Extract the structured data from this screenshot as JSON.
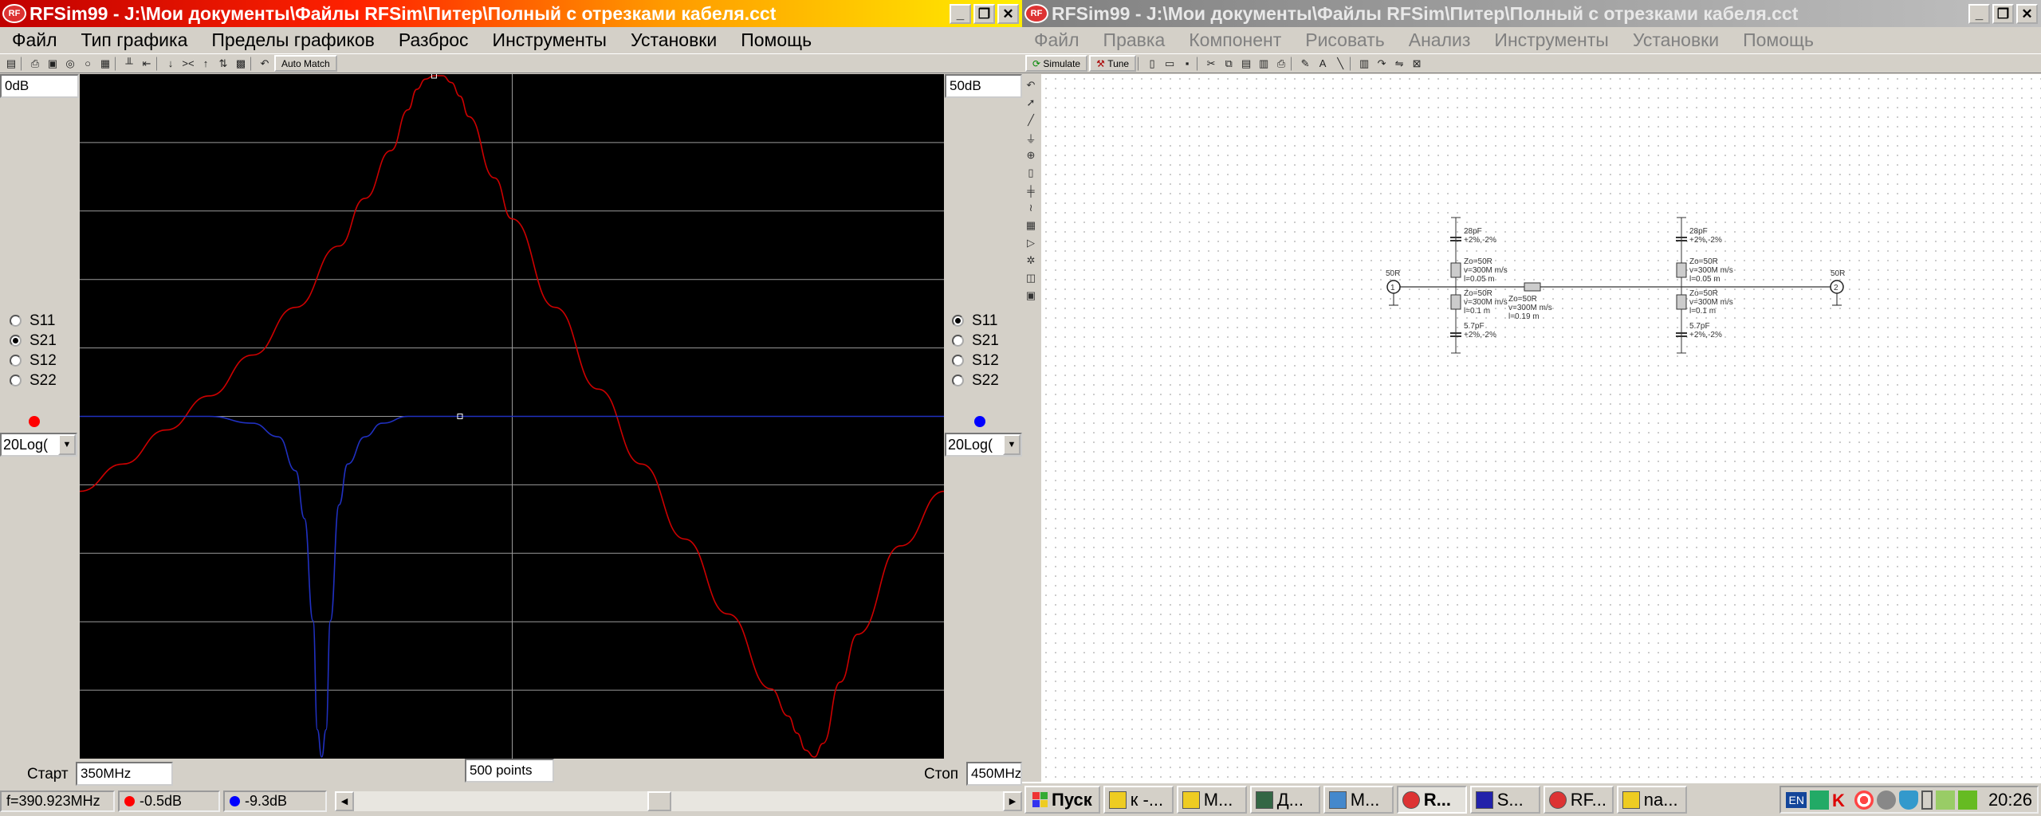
{
  "left": {
    "title": "RFSim99 - J:\\Мои документы\\Файлы RFSim\\Питер\\Полный с отрезками кабеля.cct",
    "menu": [
      "Файл",
      "Тип графика",
      "Пределы графиков",
      "Разброс",
      "Инструменты",
      "Установки",
      "Помощь"
    ],
    "toolbar": {
      "auto_match_label": "Auto Match"
    },
    "left_axis_top": "0dB",
    "right_axis_top": "50dB",
    "left_params": [
      {
        "label": "S11",
        "checked": false
      },
      {
        "label": "S21",
        "checked": true
      },
      {
        "label": "S12",
        "checked": false
      },
      {
        "label": "S22",
        "checked": false
      }
    ],
    "right_params": [
      {
        "label": "S11",
        "checked": true
      },
      {
        "label": "S21",
        "checked": false
      },
      {
        "label": "S12",
        "checked": false
      },
      {
        "label": "S22",
        "checked": false
      }
    ],
    "left_trace_color": "#ff0000",
    "right_trace_color": "#0000ff",
    "left_format": "20Log(",
    "right_format": "20Log(",
    "start_label": "Старт",
    "start_value": "350MHz",
    "stop_label": "Стоп",
    "stop_value": "450MHz",
    "points": "500 points",
    "status": {
      "freq": "f=390.923MHz",
      "red_value": "-0.5dB",
      "blue_value": "-9.3dB"
    }
  },
  "chart_data": {
    "type": "line",
    "x_range_mhz": [
      350,
      450
    ],
    "series": [
      {
        "color": "#cc0000",
        "x": [
          350,
          355,
          360,
          365,
          370,
          375,
          380,
          383,
          386,
          388,
          389,
          390,
          391,
          392,
          393,
          394,
          395,
          398,
          400,
          405,
          410,
          415,
          420,
          425,
          430,
          432,
          433,
          434,
          435,
          436,
          438,
          440,
          445,
          450
        ],
        "y_frac": [
          0.39,
          0.43,
          0.48,
          0.53,
          0.59,
          0.66,
          0.75,
          0.82,
          0.89,
          0.95,
          0.98,
          0.995,
          1.0,
          1.0,
          0.99,
          0.97,
          0.94,
          0.85,
          0.79,
          0.66,
          0.54,
          0.43,
          0.32,
          0.21,
          0.1,
          0.06,
          0.035,
          0.01,
          0.0,
          0.02,
          0.11,
          0.18,
          0.31,
          0.39
        ]
      },
      {
        "color": "#2030c0",
        "x": [
          350,
          360,
          365,
          370,
          373,
          375,
          376,
          377,
          377.5,
          378,
          378.5,
          379,
          380,
          381,
          383,
          385,
          388,
          395,
          450
        ],
        "y_frac": [
          0.5,
          0.5,
          0.5,
          0.49,
          0.47,
          0.42,
          0.35,
          0.2,
          0.04,
          0.0,
          0.04,
          0.2,
          0.37,
          0.43,
          0.47,
          0.49,
          0.5,
          0.5,
          0.5
        ]
      }
    ],
    "grid": true,
    "markers_x": [
      391,
      394
    ]
  },
  "right": {
    "title": "RFSim99 - J:\\Мои документы\\Файлы RFSim\\Питер\\Полный с отрезками кабеля.cct",
    "menu": [
      "Файл",
      "Правка",
      "Компонент",
      "Рисовать",
      "Анализ",
      "Инструменты",
      "Установки",
      "Помощь"
    ],
    "simulate_label": "Simulate",
    "tune_label": "Tune",
    "schematic": {
      "port1": "50R",
      "port2": "50R",
      "c1_top": "28pF",
      "c1_top_tol": "+2%,-2%",
      "tl1_a": "Zo=50R",
      "tl1_b": "v=300M m/s",
      "tl1_c": "l=0.05 m",
      "tl2_a": "Zo=50R",
      "tl2_b": "v=300M m/s",
      "tl2_c": "l=0.1 m",
      "c1_bot": "5.7pF",
      "c1_bot_tol": "+2%,-2%",
      "tlm_a": "Zo=50R",
      "tlm_b": "v=300M m/s",
      "tlm_c": "l=0.19 m",
      "c2_top": "28pF",
      "c2_top_tol": "+2%,-2%",
      "tl3_a": "Zo=50R",
      "tl3_b": "v=300M m/s",
      "tl3_c": "l=0.05 m",
      "tl4_a": "Zo=50R",
      "tl4_b": "v=300M m/s",
      "tl4_c": "l=0.1 m",
      "c2_bot": "5.7pF",
      "c2_bot_tol": "+2%,-2%"
    }
  },
  "taskbar": {
    "start": "Пуск",
    "tasks": [
      "к -...",
      "M...",
      "Д...",
      "M...",
      "R...",
      "S...",
      "RF...",
      "na..."
    ],
    "active_index": 4,
    "lang": "EN",
    "clock": "20:26"
  }
}
